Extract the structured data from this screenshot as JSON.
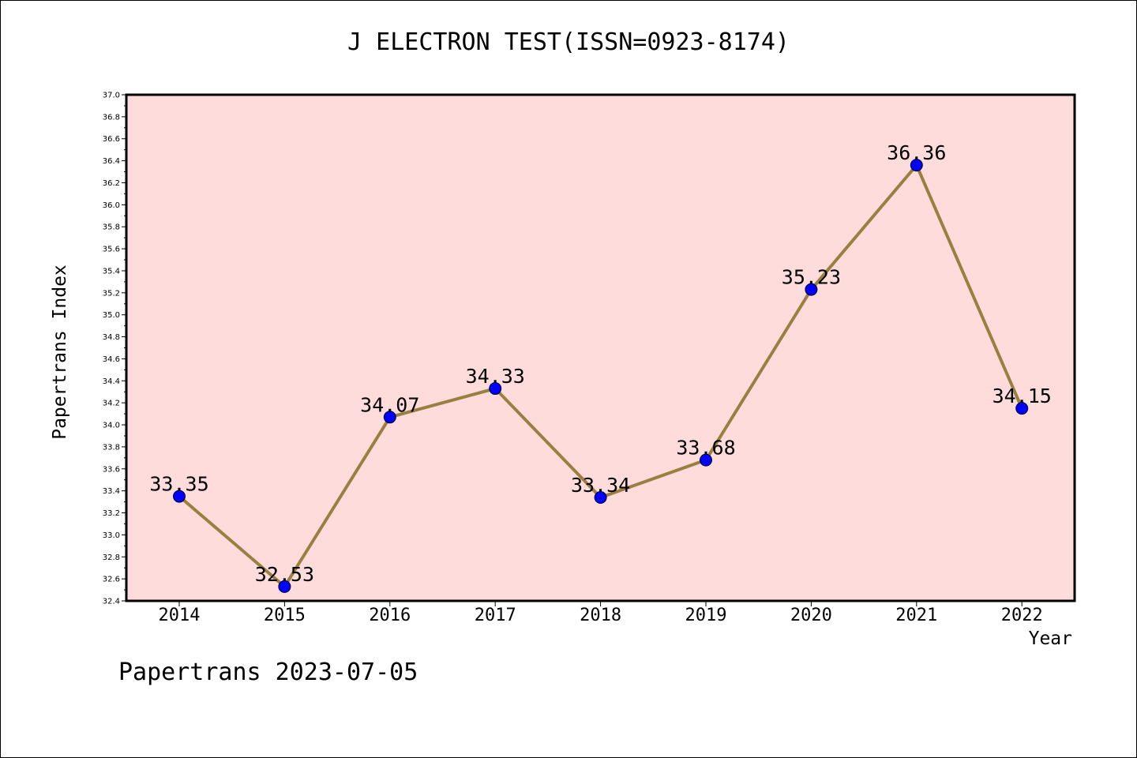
{
  "chart_data": {
    "type": "line",
    "title": "J ELECTRON TEST(ISSN=0923-8174)",
    "xlabel": "Year",
    "ylabel": "Papertrans Index",
    "x": [
      "2014",
      "2015",
      "2016",
      "2017",
      "2018",
      "2019",
      "2020",
      "2021",
      "2022"
    ],
    "series": [
      {
        "values": [
          33.35,
          32.53,
          34.07,
          34.33,
          33.34,
          33.68,
          35.23,
          36.36,
          34.15
        ],
        "data_labels": [
          "33.35",
          "32.53",
          "34.07",
          "34.33",
          "33.34",
          "33.68",
          "35.23",
          "36.36",
          "34.15"
        ]
      }
    ],
    "ylim": [
      32.4,
      37.0
    ],
    "yticks": [
      "32.4",
      "32.6",
      "32.8",
      "33.0",
      "33.2",
      "33.4",
      "33.6",
      "33.8",
      "34.0",
      "34.2",
      "34.4",
      "34.6",
      "34.8",
      "35.0",
      "35.2",
      "35.4",
      "35.6",
      "35.8",
      "36.0",
      "36.2",
      "36.4",
      "36.6",
      "36.8",
      "37.0"
    ],
    "grid": false,
    "colors": {
      "plot_background": "#ffdcdc",
      "line": "#9a8040",
      "marker": "#0000ff"
    }
  },
  "footer": "Papertrans 2023-07-05"
}
